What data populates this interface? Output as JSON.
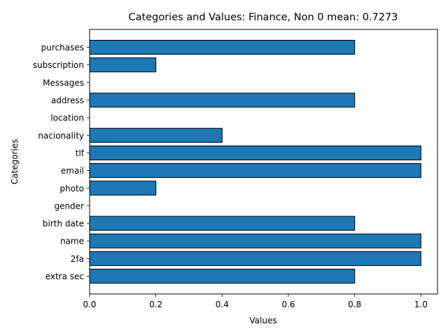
{
  "chart_data": {
    "type": "bar",
    "orientation": "horizontal",
    "title": "Categories and Values: Finance, Non 0 mean: 0.7273",
    "xlabel": "Values",
    "ylabel": "Categories",
    "categories": [
      "extra sec",
      "2fa",
      "name",
      "birth date",
      "gender",
      "photo",
      "email",
      "tlf",
      "nacionality",
      "location",
      "address",
      "Messages",
      "subscription",
      "purchases"
    ],
    "values": [
      0.8,
      1.0,
      1.0,
      0.8,
      0.0,
      0.2,
      1.0,
      1.0,
      0.4,
      0.0,
      0.8,
      0.0,
      0.2,
      0.8
    ],
    "xlim": [
      0,
      1.05
    ],
    "xticks": [
      0.0,
      0.2,
      0.4,
      0.6,
      0.8,
      1.0
    ],
    "xtick_labels": [
      "0.0",
      "0.2",
      "0.4",
      "0.6",
      "0.8",
      "1.0"
    ],
    "bar_color": "#1f77b4",
    "edge_color": "#000000",
    "grid": false,
    "legend": false
  }
}
